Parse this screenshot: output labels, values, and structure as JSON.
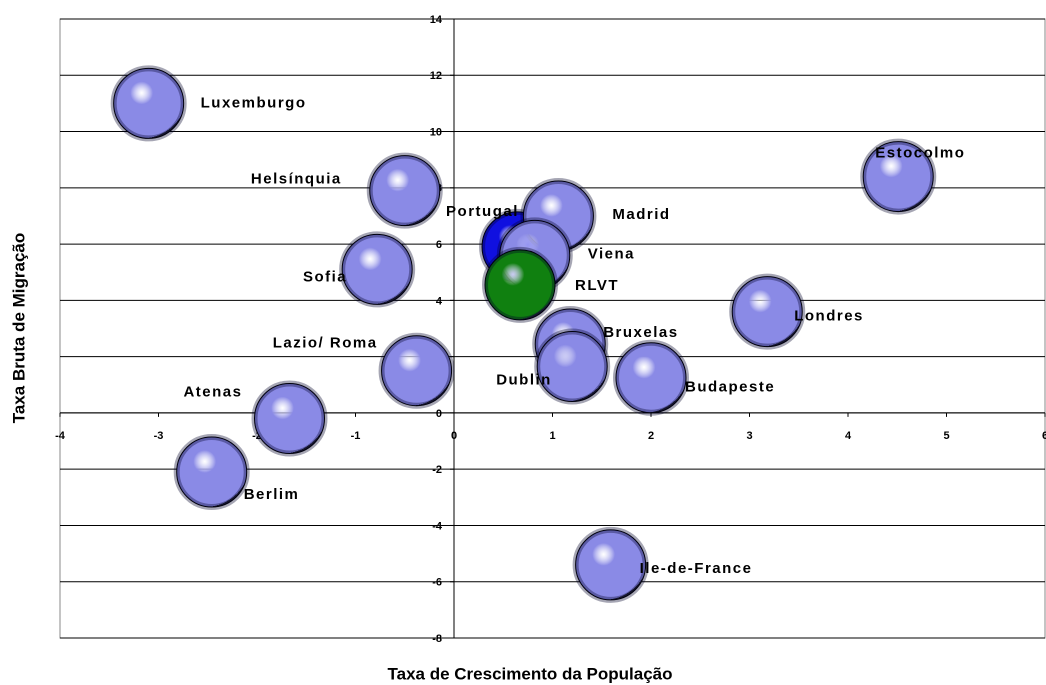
{
  "chart_data": {
    "type": "scatter",
    "xlabel": "Taxa de Crescimento da População",
    "ylabel": "Taxa Bruta de Migração",
    "xlim": [
      -4,
      6
    ],
    "ylim": [
      -8,
      14
    ],
    "xticks": [
      -4,
      -3,
      -2,
      -1,
      0,
      1,
      2,
      3,
      4,
      5,
      6
    ],
    "yticks": [
      -8,
      -6,
      -4,
      -2,
      0,
      2,
      4,
      6,
      8,
      10,
      12,
      14
    ],
    "grid": true,
    "points": [
      {
        "label": "Luxemburgo",
        "x": -3.1,
        "y": 11.0,
        "color": "#8a8ae6"
      },
      {
        "label": "Helsínquia",
        "x": -0.5,
        "y": 7.9,
        "color": "#8a8ae6"
      },
      {
        "label": "Sofia",
        "x": -0.78,
        "y": 5.1,
        "color": "#8a8ae6"
      },
      {
        "label": "Lazio/ Roma",
        "x": -0.38,
        "y": 1.5,
        "color": "#8a8ae6"
      },
      {
        "label": "Atenas",
        "x": -1.67,
        "y": -0.2,
        "color": "#8a8ae6"
      },
      {
        "label": "Berlim",
        "x": -2.46,
        "y": -2.1,
        "color": "#8a8ae6"
      },
      {
        "label": "Portugal",
        "x": 0.64,
        "y": 5.9,
        "color": "#1010e0"
      },
      {
        "label": "Madrid",
        "x": 1.06,
        "y": 7.0,
        "color": "#8a8ae6"
      },
      {
        "label": "Viena",
        "x": 0.82,
        "y": 5.6,
        "color": "#8a8ae6"
      },
      {
        "label": "RLVT",
        "x": 0.67,
        "y": 4.55,
        "color": "#108010"
      },
      {
        "label": "Bruxelas",
        "x": 1.18,
        "y": 2.45,
        "color": "#8a8ae6"
      },
      {
        "label": "Dublin",
        "x": 1.2,
        "y": 1.65,
        "color": "#8a8ae6"
      },
      {
        "label": "Budapeste",
        "x": 2.0,
        "y": 1.25,
        "color": "#8a8ae6"
      },
      {
        "label": "Londres",
        "x": 3.18,
        "y": 3.6,
        "color": "#8a8ae6"
      },
      {
        "label": "Estocolmo",
        "x": 4.51,
        "y": 8.4,
        "color": "#8a8ae6"
      },
      {
        "label": "Ile-de-France",
        "x": 1.59,
        "y": -5.4,
        "color": "#8a8ae6"
      }
    ]
  }
}
